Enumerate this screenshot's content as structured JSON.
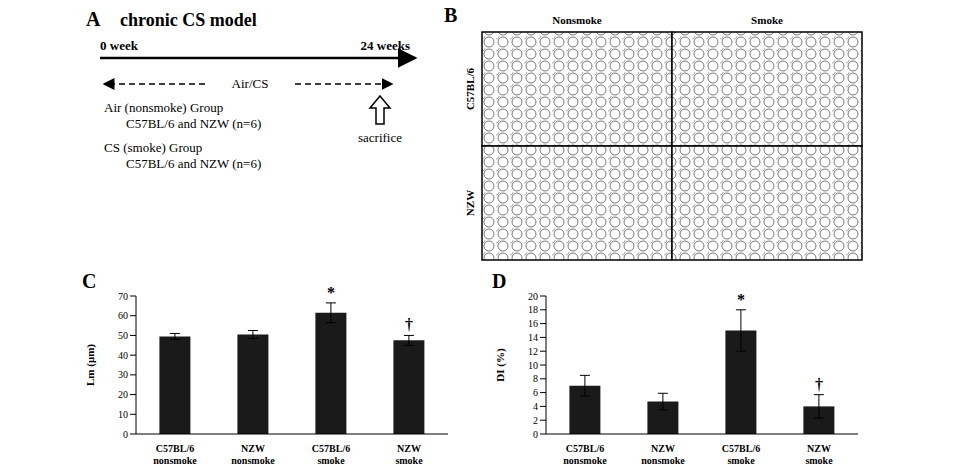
{
  "panel_a": {
    "letter": "A",
    "title": "chronic CS model",
    "start": "0 week",
    "end": "24 weeks",
    "exposure": "Air/CS",
    "groups": [
      {
        "name": "Air (nonsmoke) Group",
        "detail": "C57BL/6 and NZW (n=6)"
      },
      {
        "name": "CS (smoke) Group",
        "detail": "C57BL/6 and NZW (n=6)"
      }
    ],
    "endpoint": "sacrifice"
  },
  "panel_b": {
    "letter": "B",
    "columns": [
      "Nonsmoke",
      "Smoke"
    ],
    "rows": [
      "C57BL/6",
      "NZW"
    ]
  },
  "chart_data": [
    {
      "letter": "C",
      "type": "bar",
      "ylabel": "Lm (μm)",
      "categories": [
        "C57BL/6 nonsmoke",
        "NZW nonsmoke",
        "C57BL/6 smoke",
        "NZW smoke"
      ],
      "values": [
        49.5,
        50.5,
        61.5,
        47.5
      ],
      "errors": [
        1.5,
        2,
        5,
        2.5
      ],
      "annotations": [
        {
          "category": "C57BL/6 smoke",
          "text": "*"
        },
        {
          "category": "NZW smoke",
          "text": "†"
        }
      ],
      "color": "#1a1a1a",
      "ylim": [
        0,
        70
      ],
      "yticks": [
        0,
        10,
        20,
        30,
        40,
        50,
        60,
        70
      ],
      "grid": false
    },
    {
      "letter": "D",
      "type": "bar",
      "ylabel": "DI (%)",
      "categories": [
        "C57BL/6 nonsmoke",
        "NZW nonsmoke",
        "C57BL/6 smoke",
        "NZW smoke"
      ],
      "values": [
        7,
        4.7,
        15,
        4
      ],
      "errors": [
        1.5,
        1.2,
        3,
        1.7
      ],
      "annotations": [
        {
          "category": "C57BL/6 smoke",
          "text": "*"
        },
        {
          "category": "NZW smoke",
          "text": "†"
        }
      ],
      "color": "#1a1a1a",
      "ylim": [
        0,
        20
      ],
      "yticks": [
        0,
        2,
        4,
        6,
        8,
        10,
        12,
        14,
        16,
        18,
        20
      ],
      "grid": false
    }
  ]
}
